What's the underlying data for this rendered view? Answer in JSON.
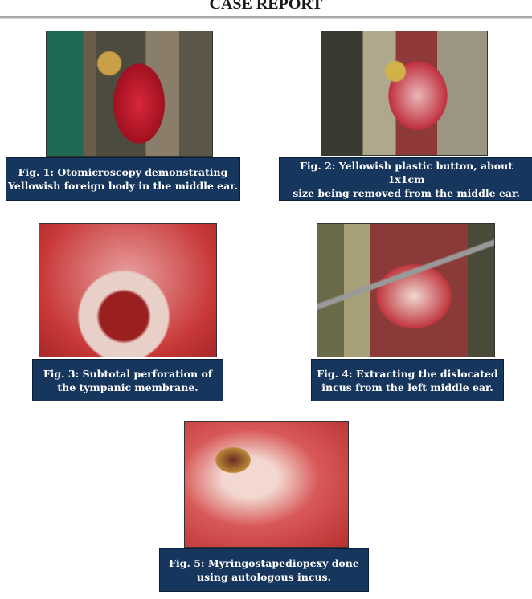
{
  "header": {
    "title": "CASE REPORT"
  },
  "figures": [
    {
      "caption": [
        "Fig. 1: Otomicroscopy demonstrating",
        "Yellowish foreign body in the middle ear."
      ]
    },
    {
      "caption": [
        "Fig. 2: Yellowish plastic button, about 1x1cm",
        "size being removed from the middle ear."
      ]
    },
    {
      "caption": [
        "Fig. 3: Subtotal perforation of",
        "the tympanic membrane."
      ]
    },
    {
      "caption": [
        "Fig. 4: Extracting the dislocated",
        "incus from the left middle ear."
      ]
    },
    {
      "caption": [
        "Fig. 5: Myringostapediopexy done",
        "using autologous incus."
      ]
    }
  ]
}
